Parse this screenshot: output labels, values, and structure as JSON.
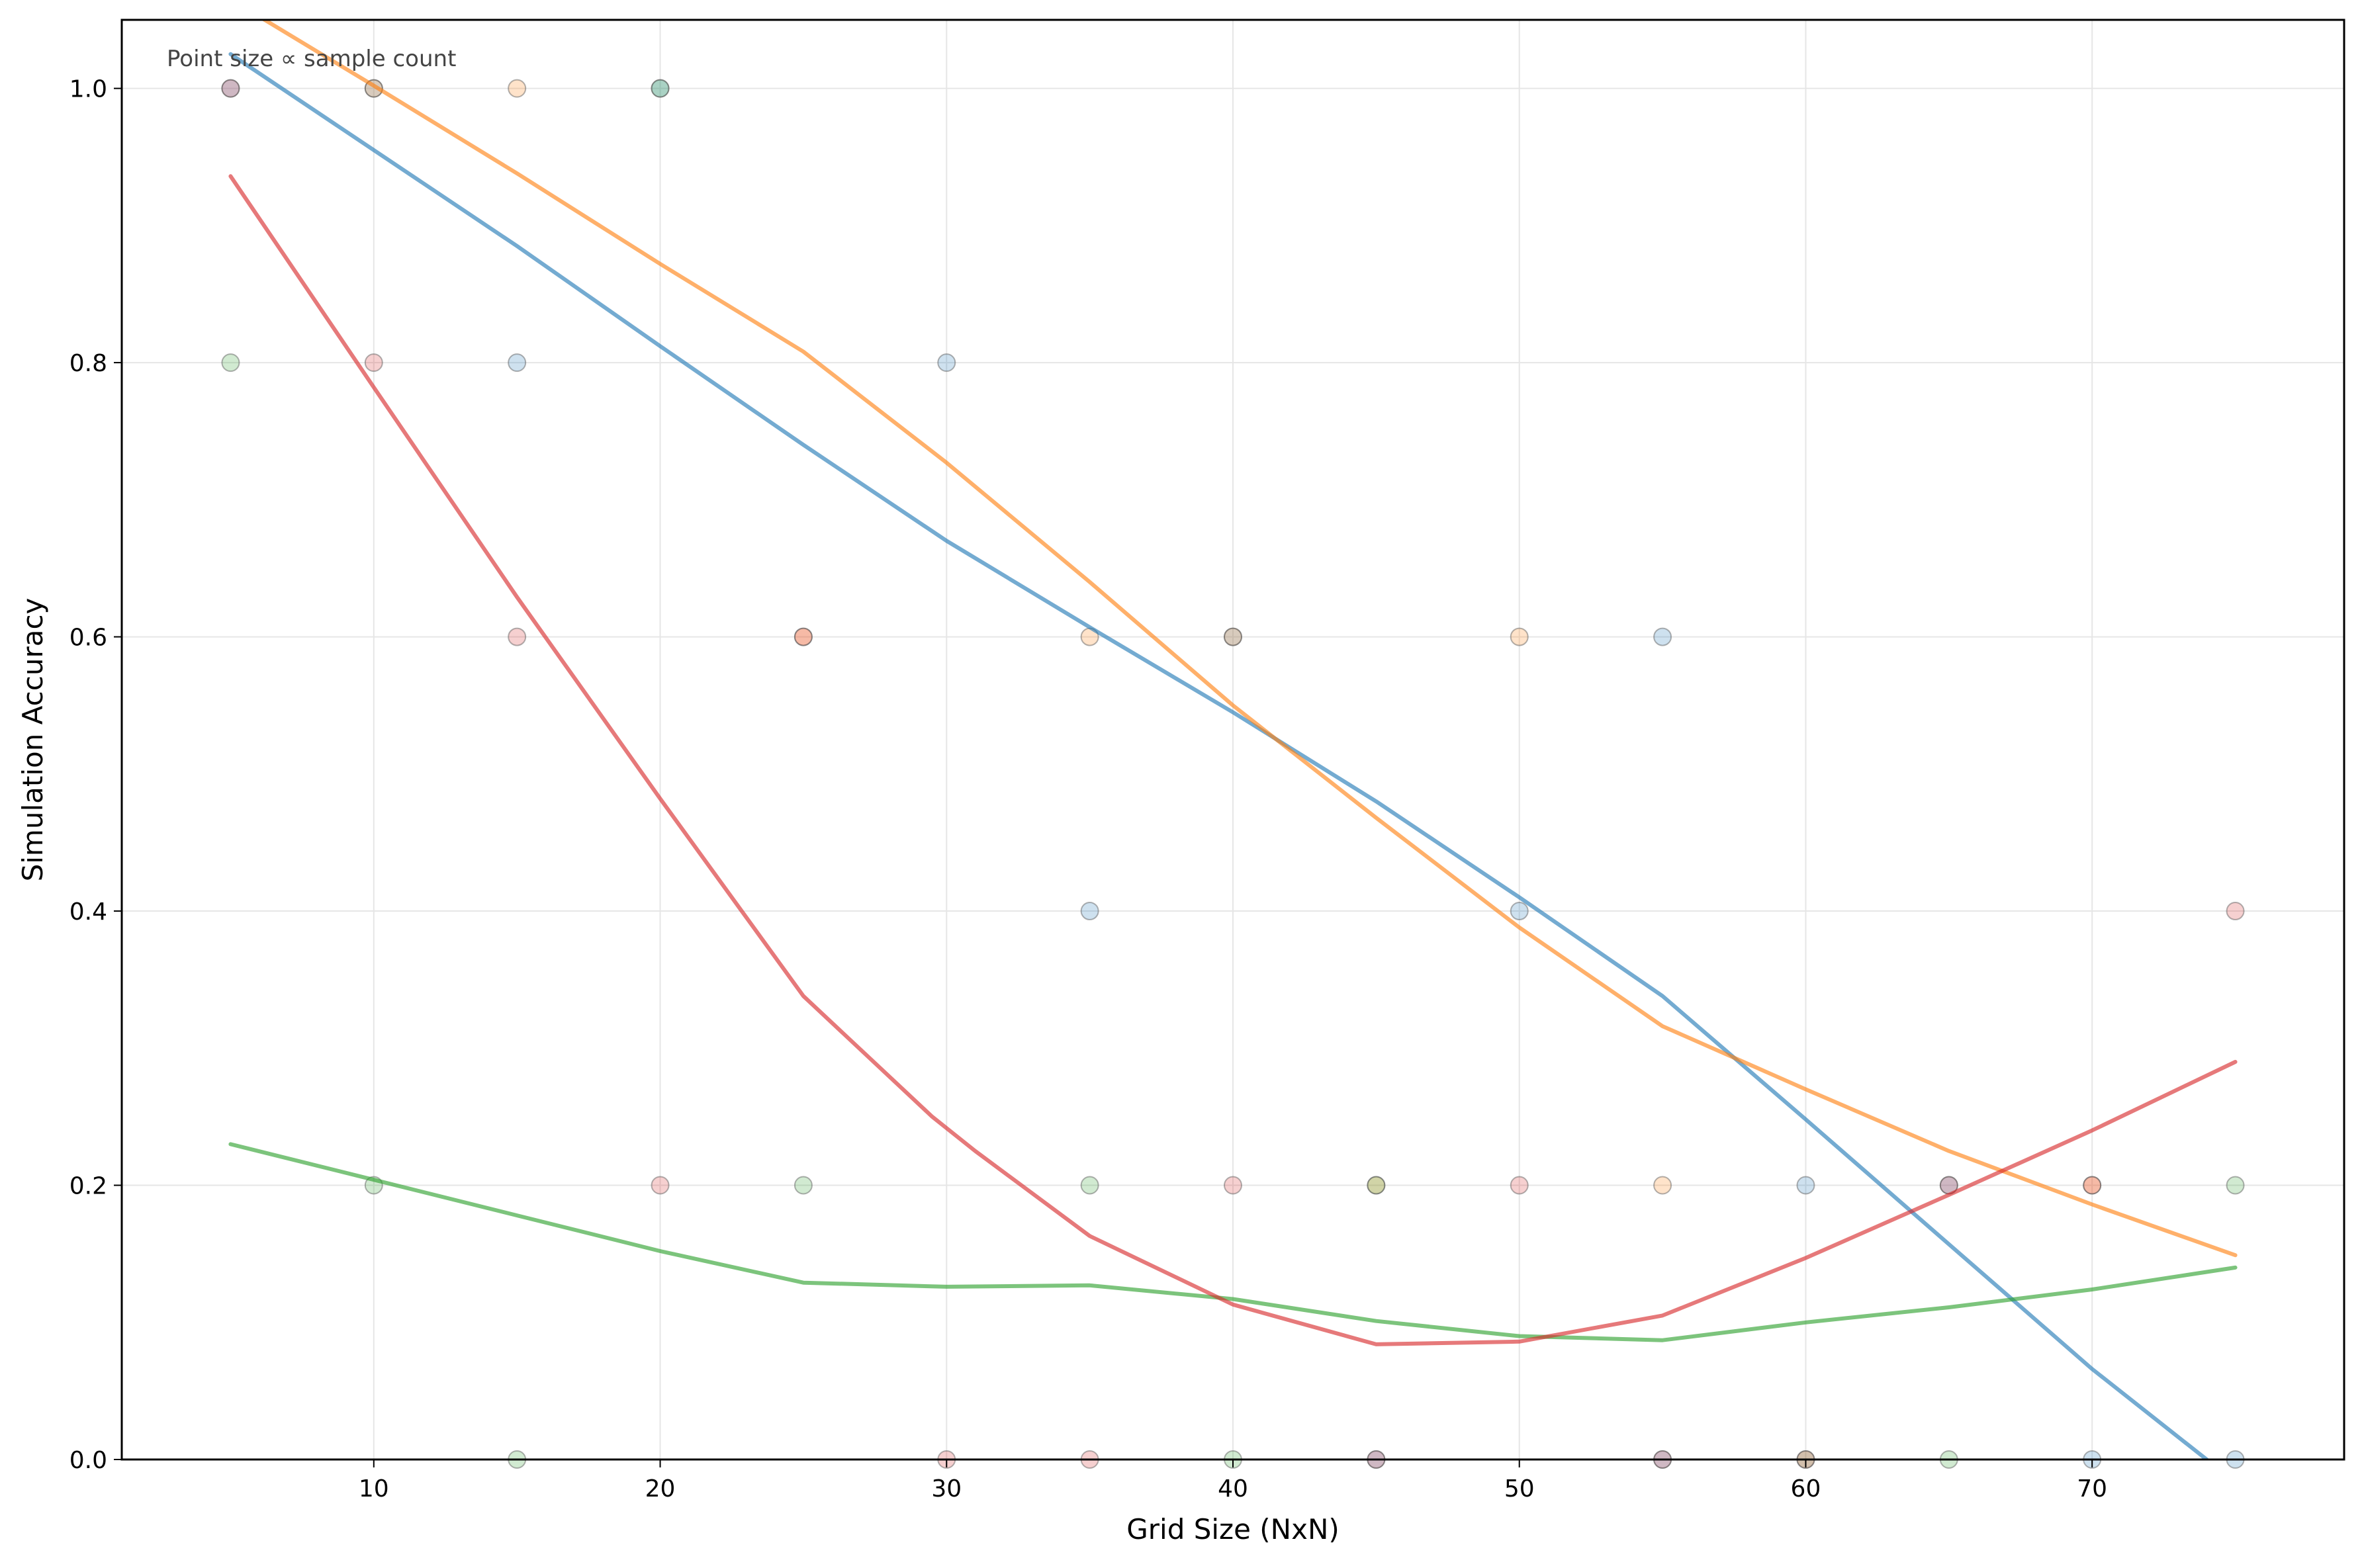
{
  "chart_data": {
    "type": "scatter",
    "xlabel": "Grid Size (NxN)",
    "ylabel": "Simulation Accuracy",
    "annotation": "Point size ∝ sample count",
    "xlim": [
      1.2,
      78.8
    ],
    "ylim": [
      0.0,
      1.05
    ],
    "xticks": [
      10,
      20,
      30,
      40,
      50,
      60,
      70
    ],
    "yticks": [
      0.0,
      0.2,
      0.4,
      0.6,
      0.8,
      1.0
    ],
    "xtick_labels": [
      "10",
      "20",
      "30",
      "40",
      "50",
      "60",
      "70"
    ],
    "ytick_labels": [
      "0.0",
      "0.2",
      "0.4",
      "0.6",
      "0.8",
      "1.0"
    ],
    "grid": true,
    "series": [
      {
        "color": "#1f77b4",
        "line": {
          "x": [
            5,
            10,
            15,
            20,
            25,
            30,
            35,
            40,
            45,
            50,
            55,
            60,
            65,
            70,
            74
          ],
          "y": [
            1.025,
            0.955,
            0.885,
            0.812,
            0.74,
            0.67,
            0.607,
            0.545,
            0.48,
            0.41,
            0.338,
            0.248,
            0.157,
            0.066,
            0.0
          ]
        },
        "points": {
          "x": [
            5,
            10,
            15,
            20,
            30,
            35,
            40,
            45,
            50,
            55,
            55,
            60,
            65,
            70,
            75
          ],
          "y": [
            1.0,
            1.0,
            0.8,
            1.0,
            0.8,
            0.4,
            0.6,
            0.0,
            0.4,
            0.6,
            0.0,
            0.2,
            0.2,
            0.0,
            0.0
          ]
        }
      },
      {
        "color": "#ff7f0e",
        "line": {
          "x": [
            5,
            10,
            15,
            20,
            25,
            30,
            35,
            40,
            45,
            50,
            55,
            60,
            65,
            70,
            75
          ],
          "y": [
            1.065,
            1.002,
            0.938,
            0.872,
            0.808,
            0.727,
            0.64,
            0.55,
            0.468,
            0.388,
            0.316,
            0.27,
            0.225,
            0.186,
            0.149
          ]
        },
        "points": {
          "x": [
            10,
            15,
            25,
            35,
            40,
            45,
            50,
            55,
            70
          ],
          "y": [
            1.0,
            1.0,
            0.6,
            0.6,
            0.6,
            0.2,
            0.6,
            0.2,
            0.2
          ]
        }
      },
      {
        "color": "#2ca02c",
        "line": {
          "x": [
            5,
            10,
            15,
            20,
            25,
            30,
            35,
            40,
            45,
            50,
            55,
            60,
            65,
            70,
            75
          ],
          "y": [
            0.23,
            0.204,
            0.178,
            0.152,
            0.129,
            0.126,
            0.127,
            0.117,
            0.101,
            0.09,
            0.087,
            0.1,
            0.111,
            0.124,
            0.14
          ]
        },
        "points": {
          "x": [
            5,
            10,
            15,
            20,
            25,
            35,
            40,
            45,
            60,
            65,
            75
          ],
          "y": [
            0.8,
            0.2,
            0.0,
            1.0,
            0.2,
            0.2,
            0.0,
            0.2,
            0.0,
            0.0,
            0.2
          ]
        }
      },
      {
        "color": "#d62728",
        "line": {
          "x": [
            5,
            10,
            15,
            20,
            25,
            29.5,
            31,
            35,
            40,
            45,
            50,
            55,
            60,
            65,
            70,
            75
          ],
          "y": [
            0.936,
            0.782,
            0.629,
            0.482,
            0.338,
            0.25,
            0.225,
            0.163,
            0.113,
            0.084,
            0.086,
            0.105,
            0.147,
            0.193,
            0.24,
            0.29
          ]
        },
        "points": {
          "x": [
            5,
            10,
            15,
            20,
            25,
            30,
            35,
            40,
            45,
            50,
            55,
            60,
            65,
            70,
            75
          ],
          "y": [
            1.0,
            0.8,
            0.6,
            0.2,
            0.6,
            0.0,
            0.0,
            0.2,
            0.0,
            0.2,
            0.0,
            0.0,
            0.2,
            0.2,
            0.4
          ]
        }
      }
    ]
  }
}
